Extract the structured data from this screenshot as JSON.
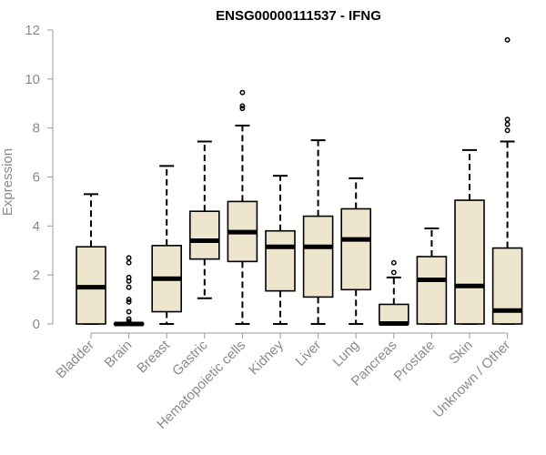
{
  "chart_data": {
    "type": "boxplot",
    "title": "ENSG00000111537 - IFNG",
    "xlabel": "",
    "ylabel": "Expression",
    "ylim": [
      0,
      12
    ],
    "yticks": [
      0,
      2,
      4,
      6,
      8,
      10,
      12
    ],
    "grid": false,
    "legend": "none",
    "box_fill": "#ede6cc",
    "box_stroke": "#000000",
    "categories": [
      "Bladder",
      "Brain",
      "Breast",
      "Gastric",
      "Hematopoietic cells",
      "Kidney",
      "Liver",
      "Lung",
      "Pancreas",
      "Prostate",
      "Skin",
      "Unknown / Other"
    ],
    "boxes": [
      {
        "category": "Bladder",
        "whisker_low": 0,
        "q1": 0,
        "median": 1.5,
        "q3": 3.15,
        "whisker_high": 5.3,
        "outliers": []
      },
      {
        "category": "Brain",
        "whisker_low": 0,
        "q1": 0,
        "median": 0,
        "q3": 0.02,
        "whisker_high": 0.02,
        "outliers": [
          0.05,
          0.1,
          0.2,
          0.5,
          0.9,
          1.0,
          1.5,
          1.75,
          1.9,
          2.5,
          2.7
        ]
      },
      {
        "category": "Breast",
        "whisker_low": 0,
        "q1": 0.5,
        "median": 1.85,
        "q3": 3.2,
        "whisker_high": 6.45,
        "outliers": []
      },
      {
        "category": "Gastric",
        "whisker_low": 1.05,
        "q1": 2.65,
        "median": 3.4,
        "q3": 4.6,
        "whisker_high": 7.45,
        "outliers": []
      },
      {
        "category": "Hematopoietic cells",
        "whisker_low": 0,
        "q1": 2.55,
        "median": 3.75,
        "q3": 5.0,
        "whisker_high": 8.1,
        "outliers": [
          8.8,
          8.9,
          9.45
        ]
      },
      {
        "category": "Kidney",
        "whisker_low": 0,
        "q1": 1.35,
        "median": 3.15,
        "q3": 3.8,
        "whisker_high": 6.05,
        "outliers": []
      },
      {
        "category": "Liver",
        "whisker_low": 0,
        "q1": 1.1,
        "median": 3.15,
        "q3": 4.4,
        "whisker_high": 7.5,
        "outliers": []
      },
      {
        "category": "Lung",
        "whisker_low": 0,
        "q1": 1.4,
        "median": 3.45,
        "q3": 4.7,
        "whisker_high": 5.95,
        "outliers": []
      },
      {
        "category": "Pancreas",
        "whisker_low": 0,
        "q1": 0,
        "median": 0.02,
        "q3": 0.8,
        "whisker_high": 1.9,
        "outliers": [
          2.1,
          2.5
        ]
      },
      {
        "category": "Prostate",
        "whisker_low": 0,
        "q1": 0,
        "median": 1.8,
        "q3": 2.75,
        "whisker_high": 3.9,
        "outliers": []
      },
      {
        "category": "Skin",
        "whisker_low": 0,
        "q1": 0,
        "median": 1.55,
        "q3": 5.05,
        "whisker_high": 7.1,
        "outliers": []
      },
      {
        "category": "Unknown / Other",
        "whisker_low": 0,
        "q1": 0,
        "median": 0.55,
        "q3": 3.1,
        "whisker_high": 7.45,
        "outliers": [
          7.9,
          8.15,
          8.35,
          11.6
        ]
      }
    ]
  }
}
